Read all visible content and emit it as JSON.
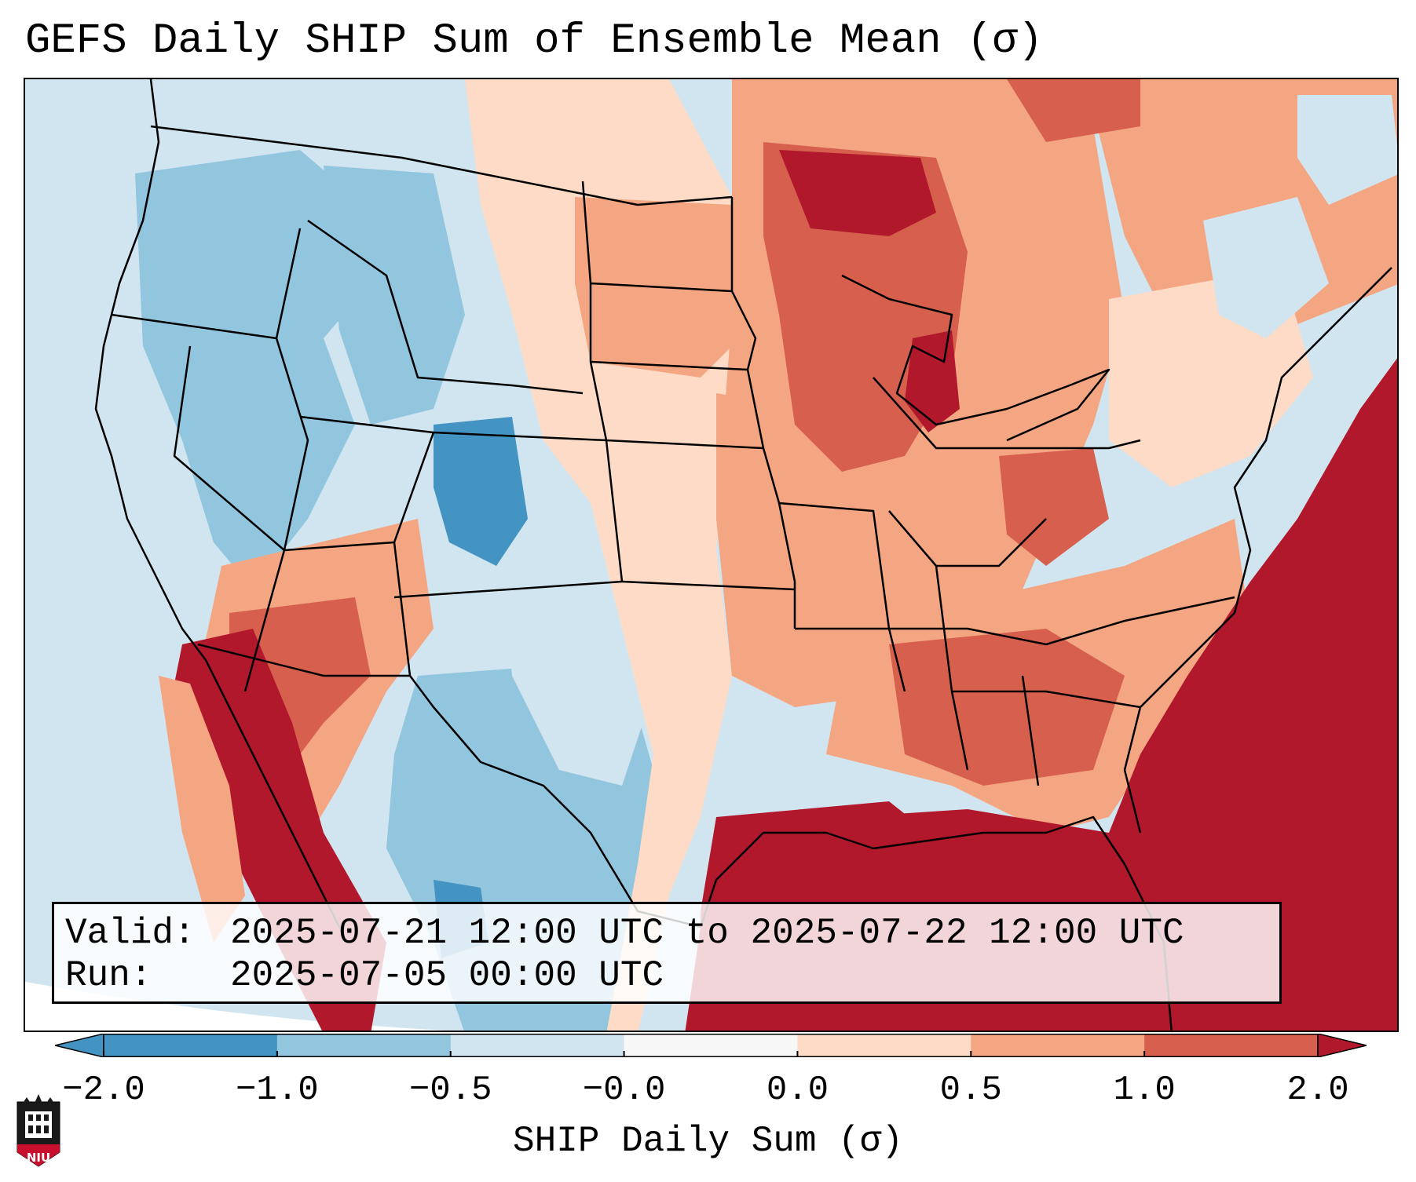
{
  "title": "GEFS Daily SHIP Sum of Ensemble Mean (σ)",
  "info": {
    "valid_label": "Valid:",
    "valid_value": "2025-07-21 12:00 UTC to 2025-07-22 12:00 UTC",
    "run_label": "Run:",
    "run_value": "2025-07-05 00:00 UTC"
  },
  "colorbar": {
    "label": "SHIP Daily Sum (σ)",
    "tick_labels": [
      "−2.0",
      "−1.0",
      "−0.5",
      "−0.0",
      "0.0",
      "0.5",
      "1.0",
      "2.0"
    ],
    "colors": [
      "#4393c3",
      "#92c5de",
      "#d1e5f0",
      "#f7f7f7",
      "#fddbc7",
      "#f4a582",
      "#d6604d",
      "#b2182b"
    ]
  },
  "logo": {
    "text": "NIU",
    "color": "#c8102e"
  },
  "map": {
    "region": "Contiguous United States",
    "field": "SHIP daily sum anomaly",
    "palette_ocean_west": "#d1e5f0",
    "palette_ocean_east": "#b2182b"
  }
}
